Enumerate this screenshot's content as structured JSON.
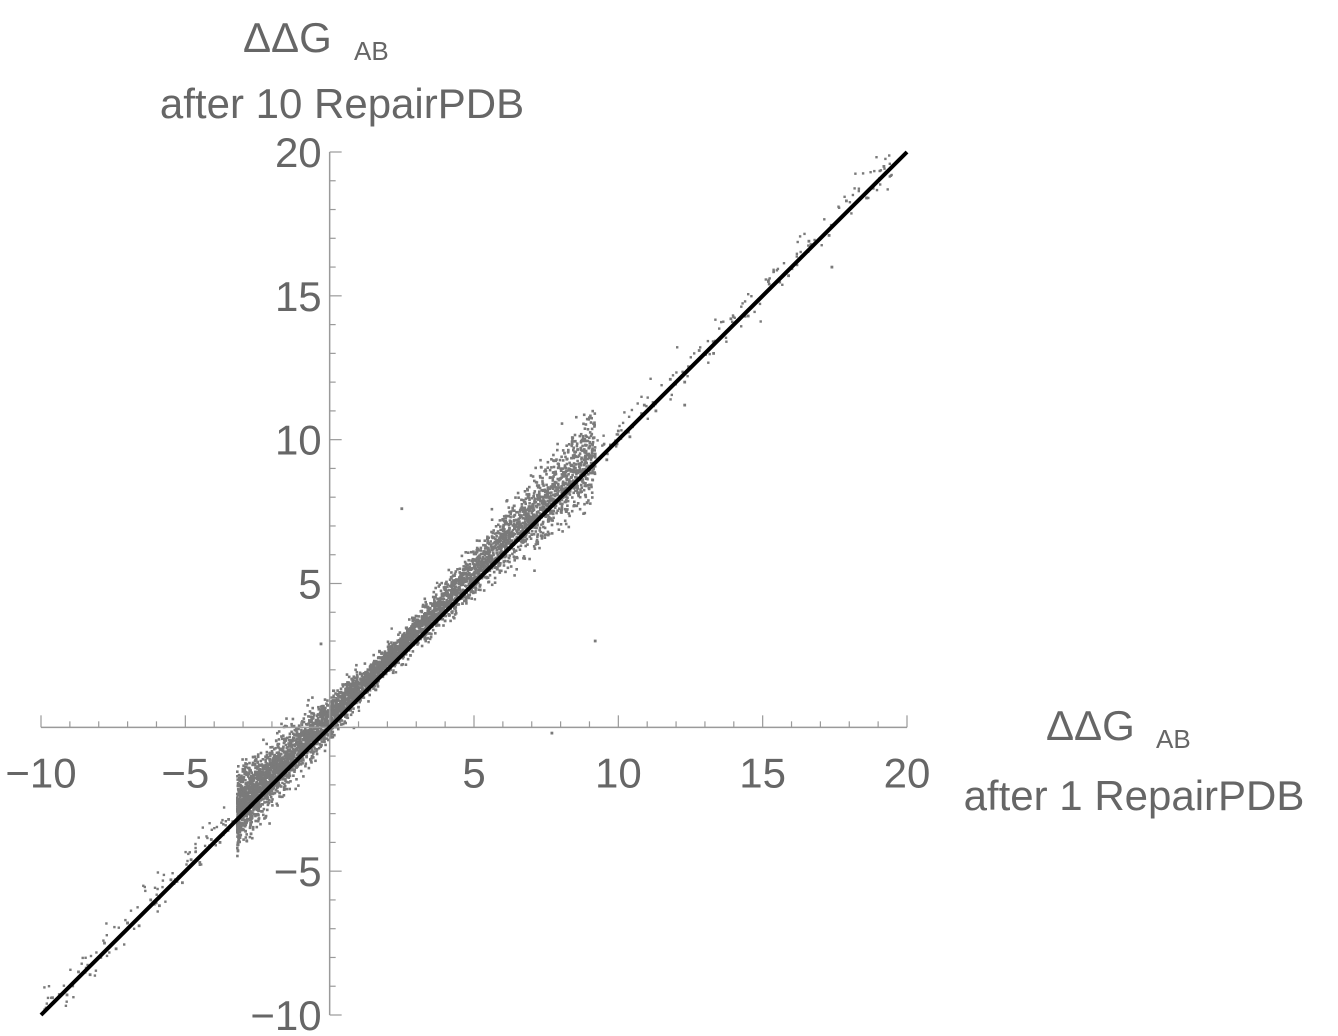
{
  "chart_data": {
    "type": "scatter",
    "xlabel": {
      "main": "ΔΔG",
      "subscript": "AB",
      "line2": "after 1 RepairPDB"
    },
    "ylabel": {
      "main": "ΔΔG",
      "subscript": "AB",
      "line2": "after 10 RepairPDB"
    },
    "xlim": [
      -10,
      20
    ],
    "ylim": [
      -10,
      20
    ],
    "x_ticks": [
      -10,
      -5,
      5,
      10,
      15,
      20
    ],
    "x_tick_labels": [
      "−10",
      "−5",
      "5",
      "10",
      "15",
      "20"
    ],
    "y_ticks": [
      -10,
      -5,
      5,
      10,
      15,
      20
    ],
    "y_tick_labels": [
      "−10",
      "−5",
      "5",
      "10",
      "15",
      "20"
    ],
    "grid": false,
    "series": [
      {
        "kind": "points",
        "color": "#7a7a7a",
        "description_values": "dense scatter of points lying close to the diagonal y = x, most concentrated between x = -3 and x = 9, sparse out to x = -10 and x = 19.5",
        "points": [
          [
            -9.6,
            -9.4
          ],
          [
            -9.1,
            -9.3
          ],
          [
            -8.7,
            -8.5
          ],
          [
            -8.3,
            -8.6
          ],
          [
            -7.8,
            -7.5
          ],
          [
            -7.4,
            -7.7
          ],
          [
            -7.0,
            -6.8
          ],
          [
            -6.6,
            -6.9
          ],
          [
            -6.2,
            -6.0
          ],
          [
            -5.9,
            -6.2
          ],
          [
            -5.5,
            -5.3
          ],
          [
            -5.1,
            -5.4
          ],
          [
            -4.8,
            -4.6
          ],
          [
            -4.5,
            -4.7
          ],
          [
            -4.1,
            -3.9
          ],
          [
            -3.8,
            -4.0
          ],
          [
            -3.5,
            -3.2
          ],
          [
            -3.2,
            -3.4
          ],
          [
            -2.9,
            -2.7
          ],
          [
            -2.6,
            -2.8
          ],
          [
            -2.3,
            -1.9
          ],
          [
            -2.0,
            -2.2
          ],
          [
            -1.7,
            -1.3
          ],
          [
            -1.4,
            -1.6
          ],
          [
            -1.1,
            -0.7
          ],
          [
            -0.8,
            -1.0
          ],
          [
            -0.5,
            -0.2
          ],
          [
            -0.2,
            -0.5
          ],
          [
            0.1,
            0.5
          ],
          [
            0.4,
            0.1
          ],
          [
            0.7,
            1.1
          ],
          [
            1.0,
            0.7
          ],
          [
            1.3,
            1.7
          ],
          [
            1.6,
            1.3
          ],
          [
            1.9,
            2.3
          ],
          [
            2.2,
            1.9
          ],
          [
            2.5,
            2.9
          ],
          [
            2.8,
            2.5
          ],
          [
            3.1,
            3.5
          ],
          [
            3.4,
            3.1
          ],
          [
            3.7,
            4.1
          ],
          [
            4.0,
            3.7
          ],
          [
            4.3,
            4.7
          ],
          [
            4.6,
            4.3
          ],
          [
            4.9,
            5.3
          ],
          [
            5.2,
            4.9
          ],
          [
            5.5,
            5.9
          ],
          [
            5.8,
            5.5
          ],
          [
            6.1,
            6.5
          ],
          [
            6.4,
            6.1
          ],
          [
            6.7,
            7.1
          ],
          [
            7.0,
            6.7
          ],
          [
            7.3,
            7.6
          ],
          [
            7.6,
            7.3
          ],
          [
            7.9,
            8.3
          ],
          [
            8.2,
            7.9
          ],
          [
            8.5,
            8.9
          ],
          [
            8.8,
            8.5
          ],
          [
            9.2,
            9.5
          ],
          [
            9.6,
            9.3
          ],
          [
            10.0,
            10.3
          ],
          [
            10.4,
            10.1
          ],
          [
            10.9,
            11.2
          ],
          [
            11.3,
            11.0
          ],
          [
            11.8,
            12.1
          ],
          [
            12.3,
            12.0
          ],
          [
            12.8,
            13.1
          ],
          [
            13.3,
            13.0
          ],
          [
            13.9,
            14.2
          ],
          [
            14.5,
            14.3
          ],
          [
            15.2,
            15.5
          ],
          [
            15.9,
            15.7
          ],
          [
            16.6,
            16.9
          ],
          [
            17.3,
            17.1
          ],
          [
            17.9,
            18.3
          ],
          [
            18.6,
            18.4
          ],
          [
            19.2,
            19.5
          ],
          [
            17.4,
            16.0
          ],
          [
            -0.3,
            2.9
          ],
          [
            2.5,
            7.6
          ],
          [
            9.2,
            3.0
          ],
          [
            12.3,
            11.2
          ],
          [
            7.7,
            -0.2
          ]
        ]
      },
      {
        "kind": "line",
        "color": "#000000",
        "equation": "y = x",
        "x": [
          -10,
          20
        ],
        "y": [
          -10,
          20
        ]
      }
    ]
  }
}
